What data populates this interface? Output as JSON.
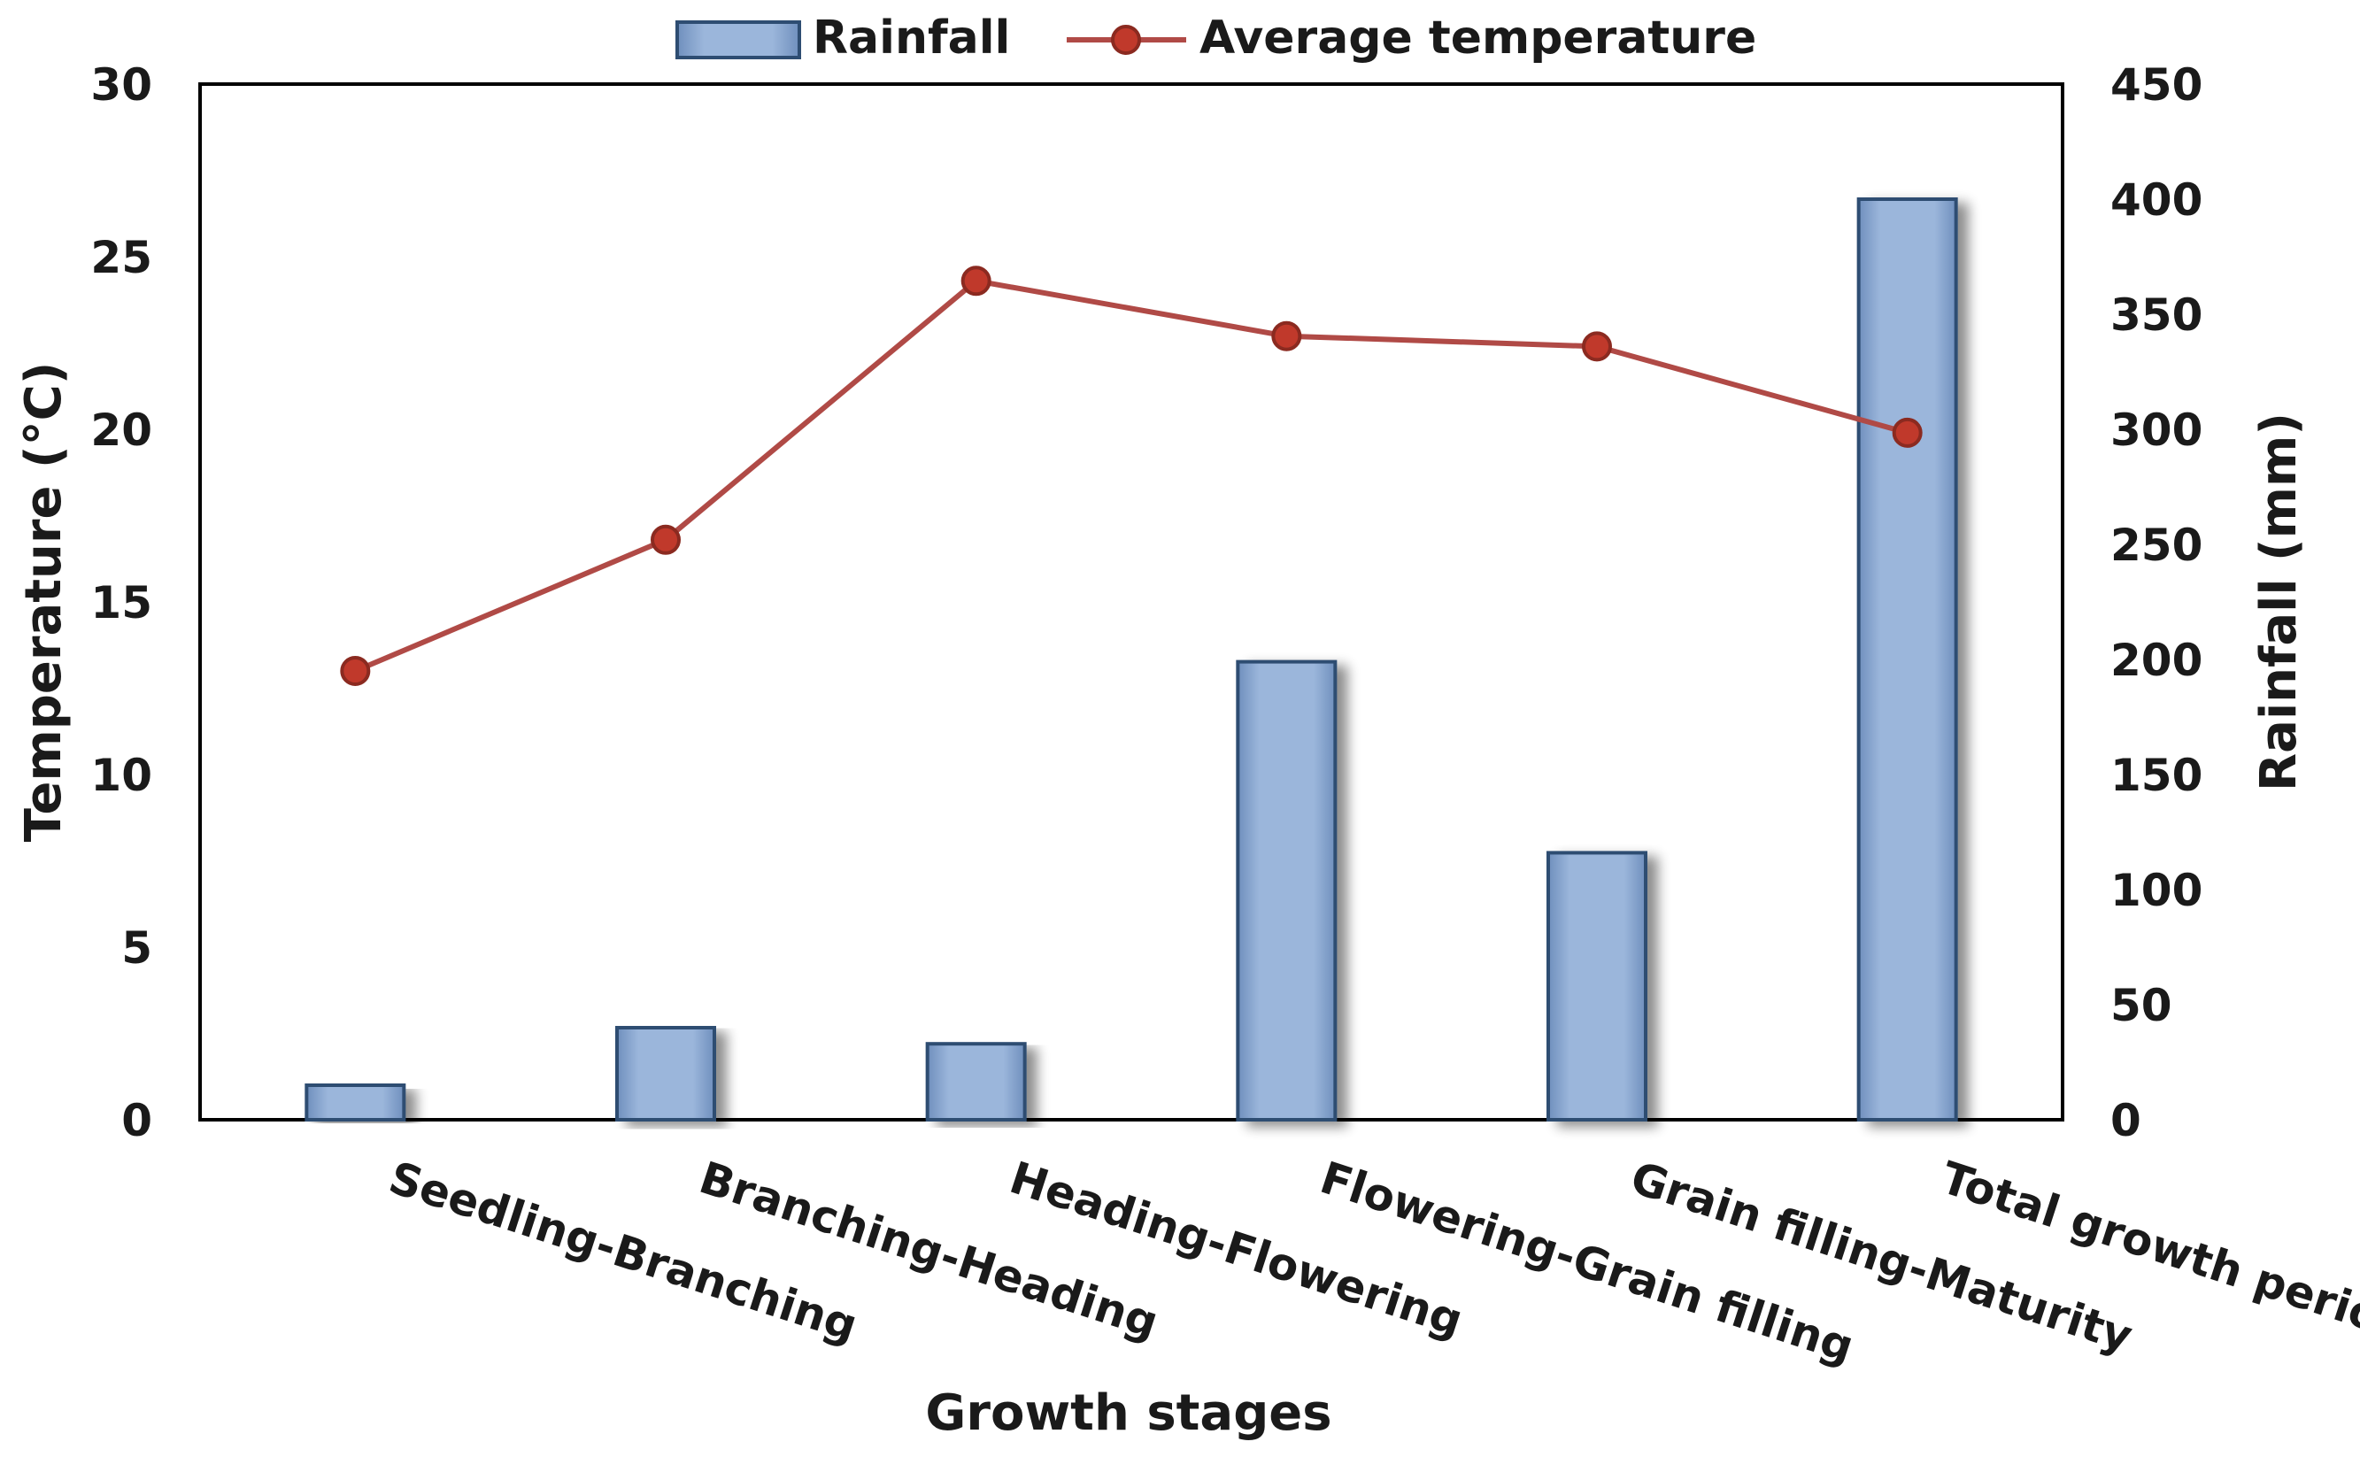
{
  "chart_data": {
    "type": "bar",
    "title": "",
    "xlabel": "Growth stages",
    "ylabel_left": "Temperature (°C)",
    "ylabel_right": "Rainfall (mm)",
    "categories": [
      "Seedling-Branching",
      "Branching-Heading",
      "Heading-Flowering",
      "Flowering-Grain filling",
      "Grain filling-Maturity",
      "Total growth period"
    ],
    "series": [
      {
        "name": "Rainfall",
        "type": "bar",
        "axis": "right",
        "values": [
          15,
          40,
          33,
          199,
          116,
          400
        ],
        "color": "#8eabd3",
        "border": "#2e4d72"
      },
      {
        "name": "Average temperature",
        "type": "line",
        "axis": "left",
        "values": [
          13.0,
          16.8,
          24.3,
          22.7,
          22.4,
          19.9
        ],
        "color": "#b04a46",
        "marker": "#c0392b"
      }
    ],
    "ylim_left": [
      0,
      30
    ],
    "ylim_right": [
      0,
      450
    ],
    "yticks_left": [
      "0",
      "5",
      "10",
      "15",
      "20",
      "25",
      "30"
    ],
    "yticks_right": [
      "0",
      "50",
      "100",
      "150",
      "200",
      "250",
      "300",
      "350",
      "400",
      "450"
    ],
    "legend": {
      "position": "top-center",
      "entries": [
        "Rainfall",
        "Average temperature"
      ]
    },
    "grid": false
  }
}
